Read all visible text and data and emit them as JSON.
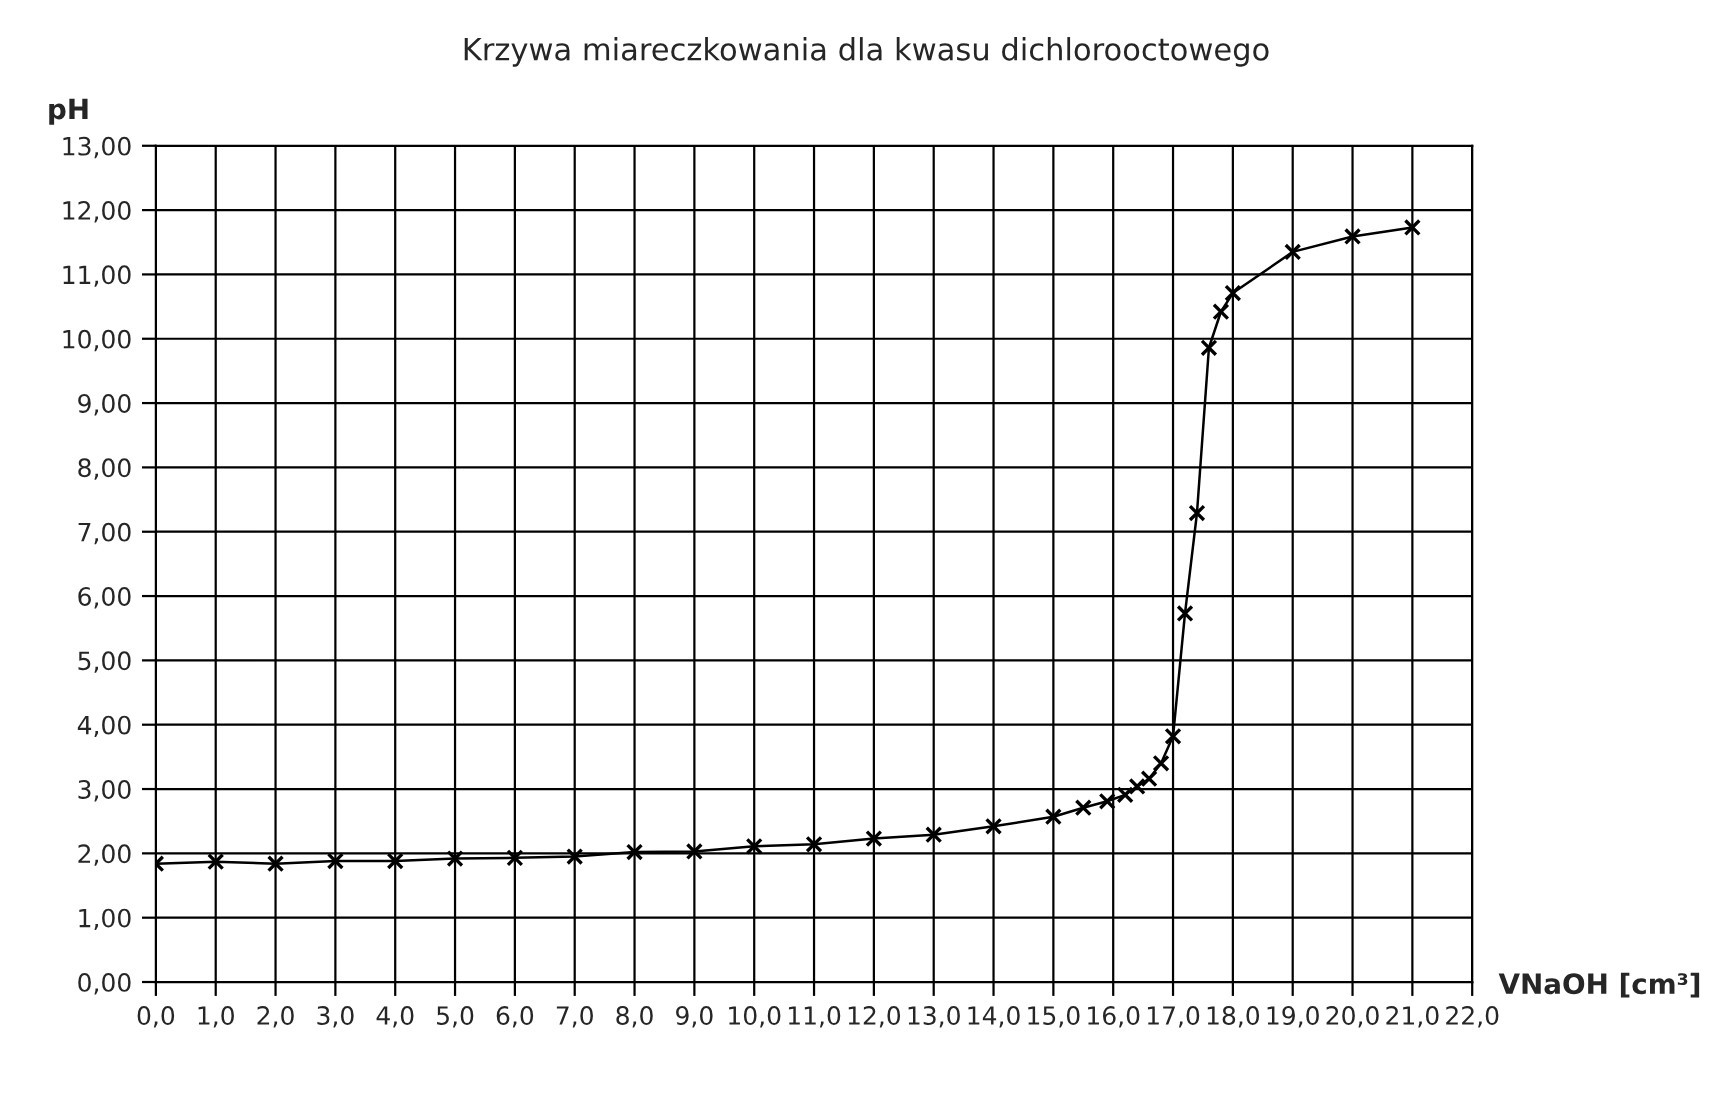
{
  "chart_data": {
    "type": "line",
    "title": "Krzywa miareczkowania dla kwasu dichlorooctowego",
    "xlabel": "VNaOH [cm³]",
    "ylabel": "pH",
    "x": [
      0,
      1,
      2,
      3,
      4,
      5,
      6,
      7,
      8,
      9,
      10,
      11,
      12,
      13,
      14,
      15,
      15.5,
      15.9,
      16.2,
      16.4,
      16.6,
      16.8,
      17.0,
      17.2,
      17.4,
      17.6,
      17.8,
      18.0,
      19.0,
      20.0,
      21.0
    ],
    "values": [
      1.84,
      1.87,
      1.84,
      1.88,
      1.88,
      1.92,
      1.93,
      1.95,
      2.02,
      2.03,
      2.11,
      2.14,
      2.23,
      2.29,
      2.42,
      2.57,
      2.71,
      2.81,
      2.91,
      3.04,
      3.16,
      3.4,
      3.82,
      5.73,
      7.29,
      9.86,
      10.42,
      10.71,
      11.35,
      11.59,
      11.73
    ],
    "color": "#000000",
    "marker": "cross",
    "line_style": "solid",
    "grid": true,
    "xlim": [
      0,
      22
    ],
    "ylim": [
      0,
      13
    ],
    "xticks": [
      {
        "value": 0,
        "label": "0,0"
      },
      {
        "value": 1,
        "label": "1,0"
      },
      {
        "value": 2,
        "label": "2,0"
      },
      {
        "value": 3,
        "label": "3,0"
      },
      {
        "value": 4,
        "label": "4,0"
      },
      {
        "value": 5,
        "label": "5,0"
      },
      {
        "value": 6,
        "label": "6,0"
      },
      {
        "value": 7,
        "label": "7,0"
      },
      {
        "value": 8,
        "label": "8,0"
      },
      {
        "value": 9,
        "label": "9,0"
      },
      {
        "value": 10,
        "label": "10,0"
      },
      {
        "value": 11,
        "label": "11,0"
      },
      {
        "value": 12,
        "label": "12,0"
      },
      {
        "value": 13,
        "label": "13,0"
      },
      {
        "value": 14,
        "label": "14,0"
      },
      {
        "value": 15,
        "label": "15,0"
      },
      {
        "value": 16,
        "label": "16,0"
      },
      {
        "value": 17,
        "label": "17,0"
      },
      {
        "value": 18,
        "label": "18,0"
      },
      {
        "value": 19,
        "label": "19,0"
      },
      {
        "value": 20,
        "label": "20,0"
      },
      {
        "value": 21,
        "label": "21,0"
      },
      {
        "value": 22,
        "label": "22,0"
      }
    ],
    "yticks": [
      {
        "value": 0,
        "label": "0,00"
      },
      {
        "value": 1,
        "label": "1,00"
      },
      {
        "value": 2,
        "label": "2,00"
      },
      {
        "value": 3,
        "label": "3,00"
      },
      {
        "value": 4,
        "label": "4,00"
      },
      {
        "value": 5,
        "label": "5,00"
      },
      {
        "value": 6,
        "label": "6,00"
      },
      {
        "value": 7,
        "label": "7,00"
      },
      {
        "value": 8,
        "label": "8,00"
      },
      {
        "value": 9,
        "label": "9,00"
      },
      {
        "value": 10,
        "label": "10,00"
      },
      {
        "value": 11,
        "label": "11,00"
      },
      {
        "value": 12,
        "label": "12,00"
      },
      {
        "value": 13,
        "label": "13,00"
      }
    ]
  }
}
